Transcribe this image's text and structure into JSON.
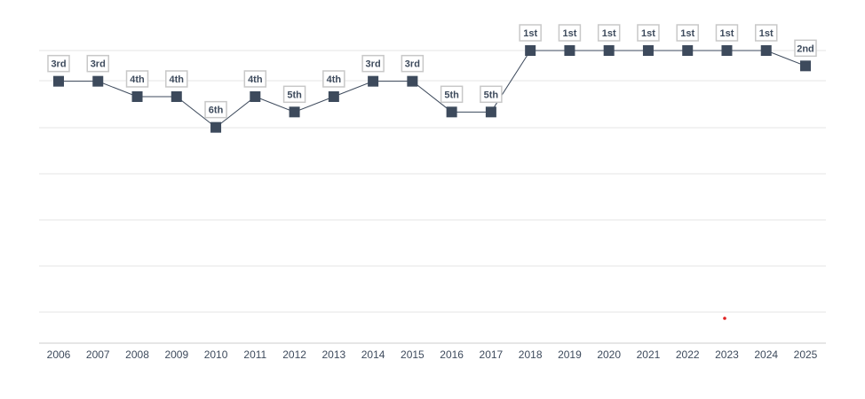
{
  "chart_data": {
    "type": "line",
    "title": "",
    "xlabel": "",
    "ylabel": "",
    "x": [
      "2006",
      "2007",
      "2008",
      "2009",
      "2010",
      "2011",
      "2012",
      "2013",
      "2014",
      "2015",
      "2016",
      "2017",
      "2018",
      "2019",
      "2020",
      "2021",
      "2022",
      "2023",
      "2024",
      "2025"
    ],
    "series": [
      {
        "values": [
          3,
          3,
          4,
          4,
          6,
          4,
          5,
          4,
          3,
          3,
          5,
          5,
          1,
          1,
          1,
          1,
          1,
          1,
          1,
          2
        ],
        "labels": [
          "3rd",
          "3rd",
          "4th",
          "4th",
          "6th",
          "4th",
          "5th",
          "4th",
          "3rd",
          "3rd",
          "5th",
          "5th",
          "1st",
          "1st",
          "1st",
          "1st",
          "1st",
          "1st",
          "1st",
          "2nd"
        ]
      }
    ],
    "ylim": [
      1,
      20
    ],
    "y_inverted": true,
    "grid": true,
    "legend": "none",
    "colors": {
      "line": "#3d4a5c",
      "marker": "#3d4a5c",
      "gridline": "#e6e6e6",
      "axis": "#cccccc",
      "label_border": "#c8c8c8",
      "accent_dot": "#e02020"
    }
  }
}
